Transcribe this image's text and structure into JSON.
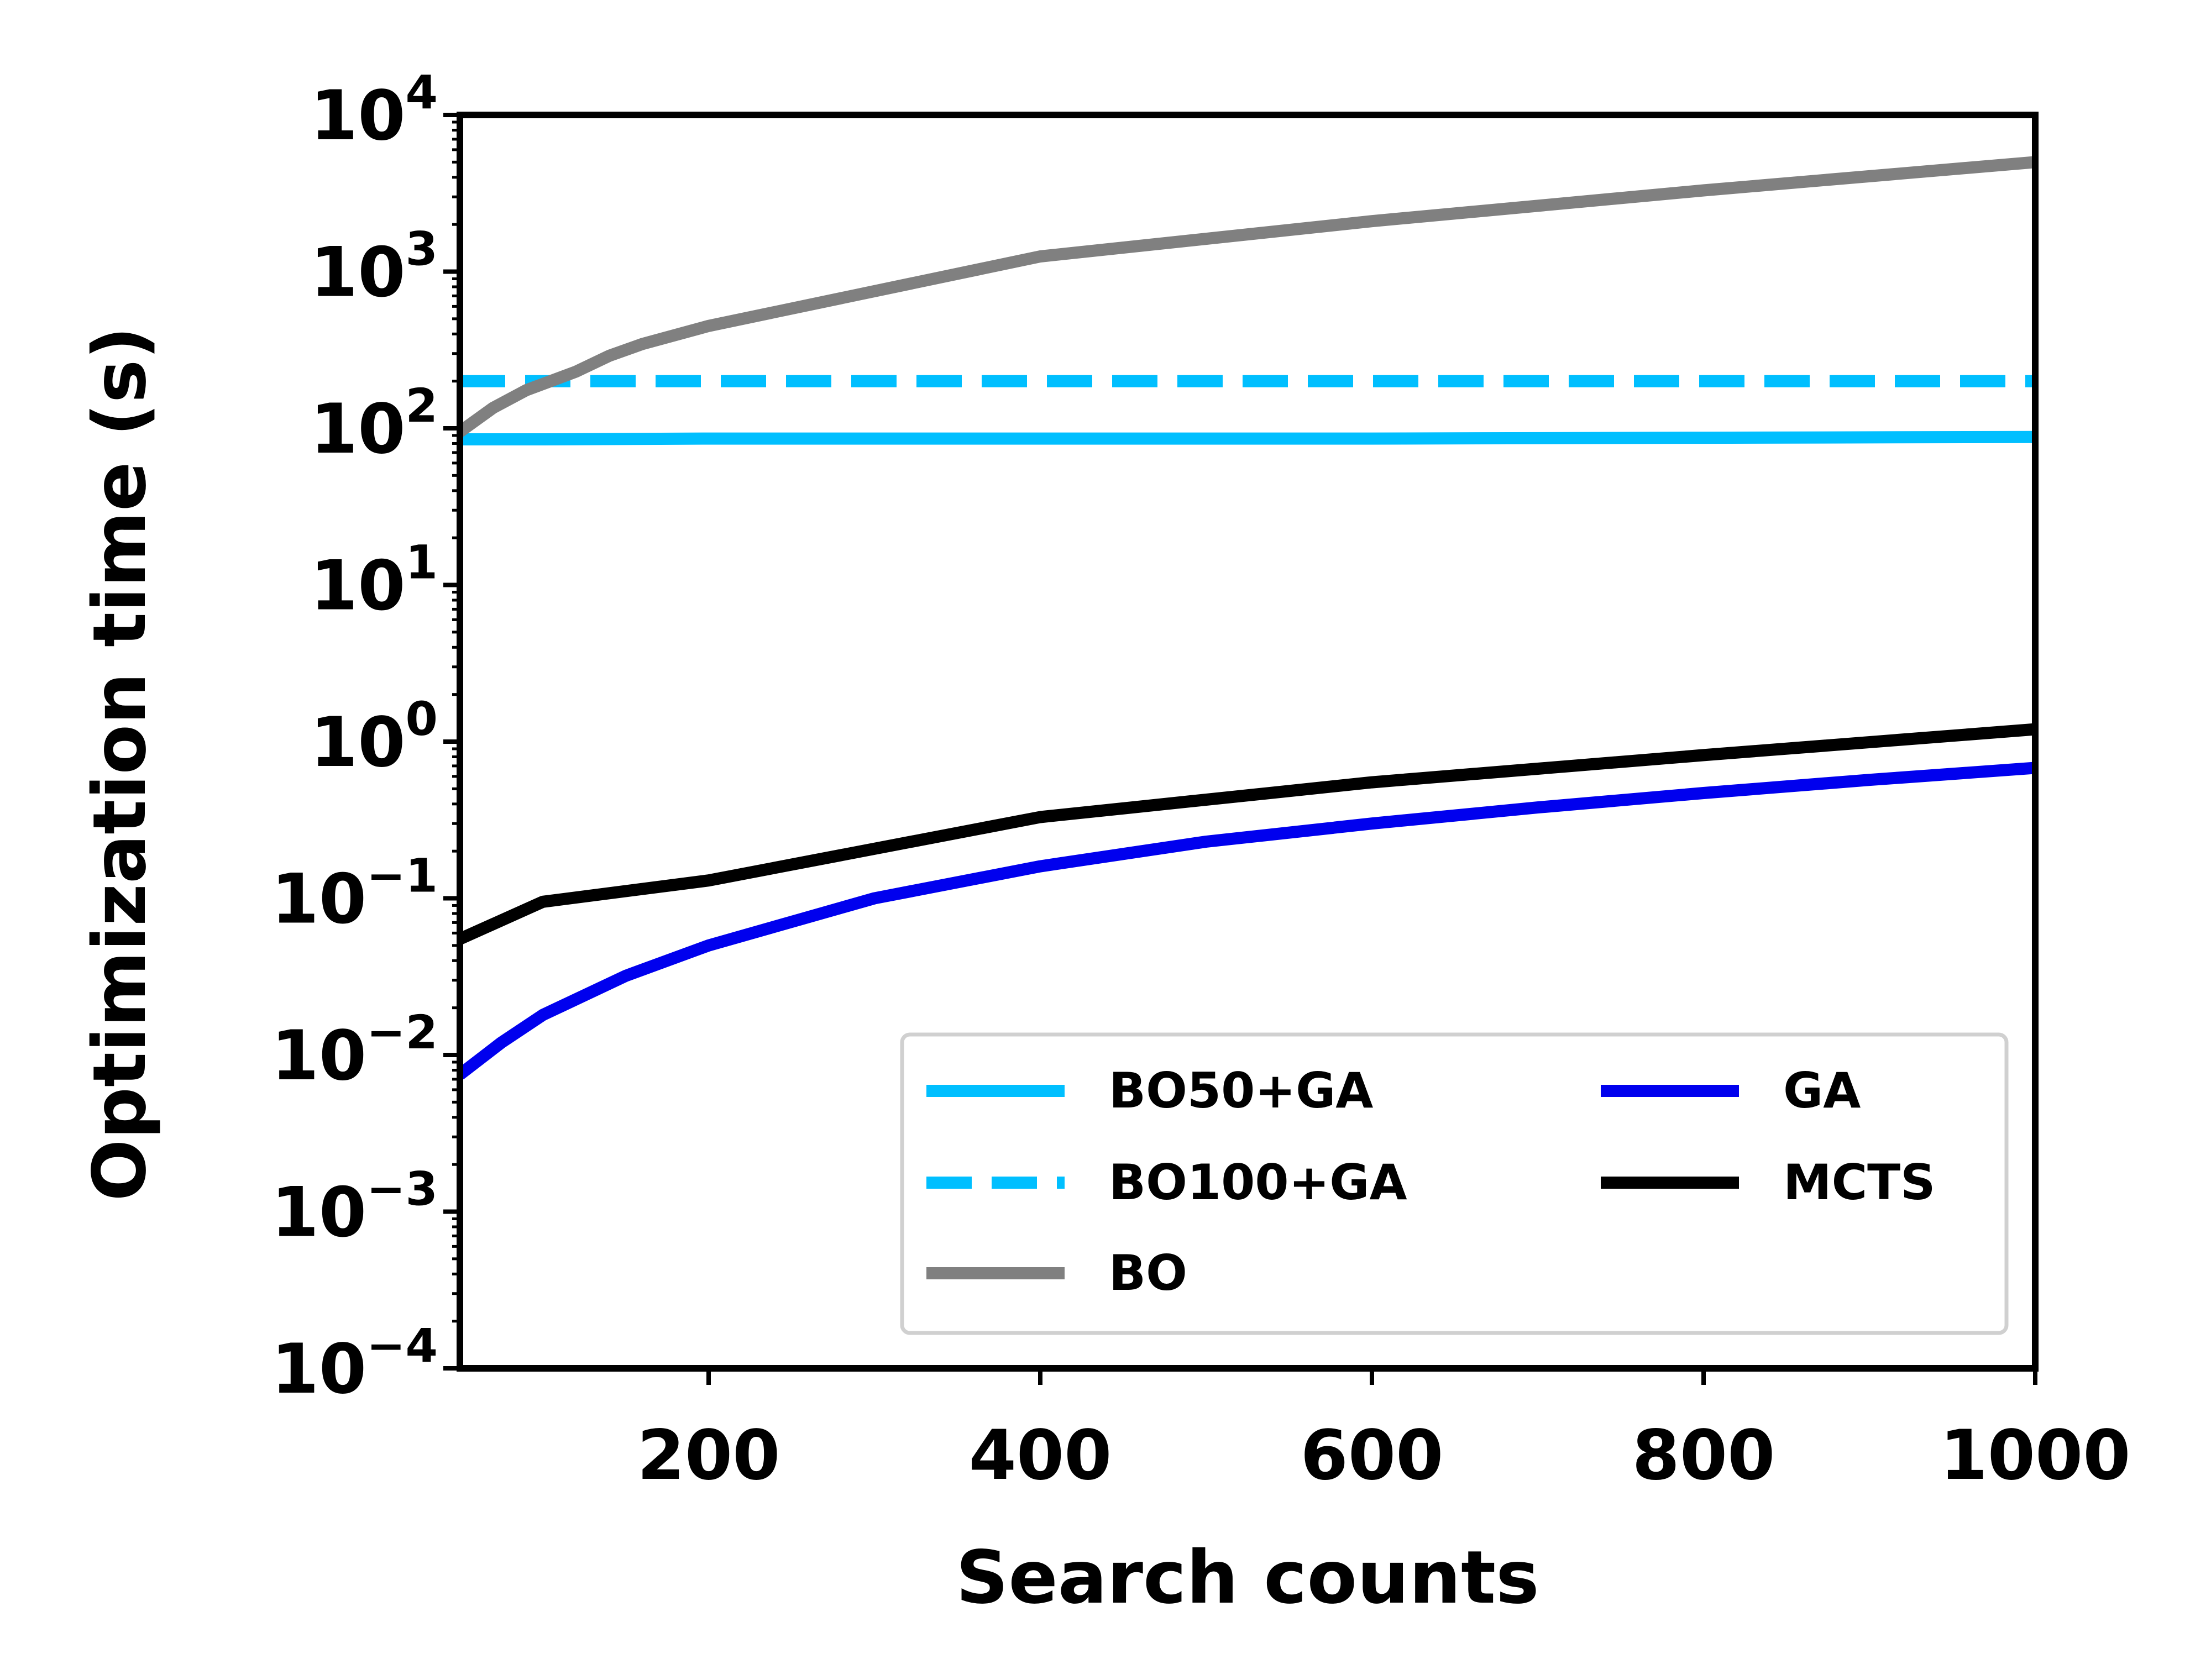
{
  "chart_data": {
    "type": "line",
    "xlabel": "Search counts",
    "ylabel": "Optimization time (s)",
    "xlim": [
      50,
      1000
    ],
    "ylim": [
      0.0001,
      10000
    ],
    "yscale": "log",
    "grid": false,
    "legend_position": "lower-right",
    "x_ticks": [
      "200",
      "400",
      "600",
      "800",
      "1000"
    ],
    "y_ticks": [
      {
        "base": "10",
        "exp": "4"
      },
      {
        "base": "10",
        "exp": "3"
      },
      {
        "base": "10",
        "exp": "2"
      },
      {
        "base": "10",
        "exp": "1"
      },
      {
        "base": "10",
        "exp": "0"
      },
      {
        "base": "10",
        "exp": "−1"
      },
      {
        "base": "10",
        "exp": "−2"
      },
      {
        "base": "10",
        "exp": "−3"
      },
      {
        "base": "10",
        "exp": "−4"
      }
    ],
    "series": [
      {
        "name": "BO50+GA",
        "color": "#00bfff",
        "dash": "solid",
        "x": [
          50,
          100,
          200,
          400,
          600,
          800,
          1000
        ],
        "y": [
          85,
          85,
          86,
          86,
          86,
          87,
          88
        ]
      },
      {
        "name": "BO100+GA",
        "color": "#00bfff",
        "dash": "dashed",
        "x": [
          50,
          100,
          200,
          400,
          600,
          800,
          1000
        ],
        "y": [
          200,
          200,
          200,
          200,
          200,
          200,
          200
        ]
      },
      {
        "name": "BO",
        "color": "#808080",
        "dash": "solid",
        "x": [
          50,
          70,
          90,
          120,
          140,
          160,
          200,
          400,
          600,
          800,
          1000
        ],
        "y": [
          95,
          135,
          175,
          230,
          290,
          345,
          450,
          1250,
          2100,
          3300,
          5000
        ]
      },
      {
        "name": "GA",
        "color": "#0000ee",
        "dash": "solid",
        "x": [
          50,
          75,
          100,
          150,
          200,
          300,
          400,
          500,
          600,
          700,
          800,
          900,
          1000
        ],
        "y": [
          0.0075,
          0.012,
          0.018,
          0.032,
          0.05,
          0.1,
          0.16,
          0.23,
          0.3,
          0.38,
          0.47,
          0.57,
          0.68
        ]
      },
      {
        "name": "MCTS",
        "color": "#000000",
        "dash": "solid",
        "x": [
          50,
          100,
          200,
          400,
          600,
          800,
          1000
        ],
        "y": [
          0.055,
          0.095,
          0.13,
          0.33,
          0.55,
          0.82,
          1.2
        ]
      }
    ],
    "legend_order": [
      "BO50+GA",
      "BO100+GA",
      "BO",
      "GA",
      "MCTS"
    ]
  }
}
